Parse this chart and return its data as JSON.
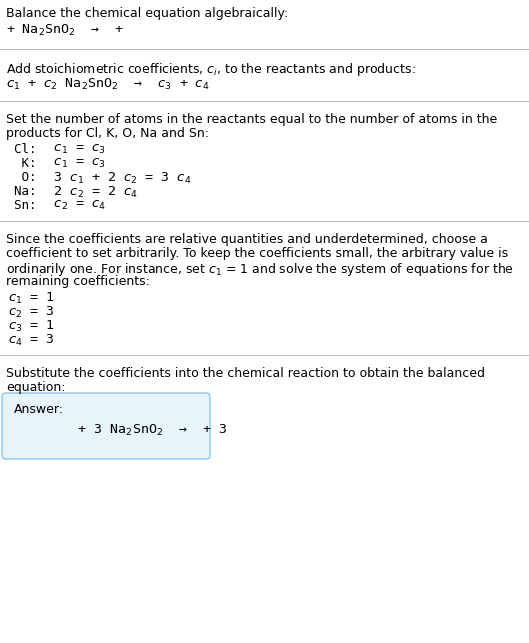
{
  "bg_color": "#ffffff",
  "text_color": "#000000",
  "section1_title": "Balance the chemical equation algebraically:",
  "section1_eq": "+ Na$_2$SnO$_2$  →  +",
  "section2_intro": "Add stoichiometric coefficients, $c_i$, to the reactants and products:",
  "section2_eq": "$c_1$ + $c_2$ Na$_2$SnO$_2$  →  $c_3$ + $c_4$",
  "section3_intro1": "Set the number of atoms in the reactants equal to the number of atoms in the",
  "section3_intro2": "products for Cl, K, O, Na and Sn:",
  "section3_rows": [
    [
      "Cl: ",
      " $c_1$ = $c_3$"
    ],
    [
      " K: ",
      " $c_1$ = $c_3$"
    ],
    [
      " O: ",
      " 3 $c_1$ + 2 $c_2$ = 3 $c_4$"
    ],
    [
      "Na: ",
      " 2 $c_2$ = 2 $c_4$"
    ],
    [
      "Sn: ",
      " $c_2$ = $c_4$"
    ]
  ],
  "section4_intro1": "Since the coefficients are relative quantities and underdetermined, choose a",
  "section4_intro2": "coefficient to set arbitrarily. To keep the coefficients small, the arbitrary value is",
  "section4_intro3": "ordinarily one. For instance, set $c_1$ = 1 and solve the system of equations for the",
  "section4_intro4": "remaining coefficients:",
  "section4_vals": [
    "$c_1$ = 1",
    "$c_2$ = 3",
    "$c_3$ = 1",
    "$c_4$ = 3"
  ],
  "section5_intro1": "Substitute the coefficients into the chemical reaction to obtain the balanced",
  "section5_intro2": "equation:",
  "answer_label": "Answer:",
  "answer_eq": "        + 3 Na$_2$SnO$_2$  →  + 3",
  "answer_box_facecolor": "#e8f4fb",
  "answer_box_edgecolor": "#88c8e8",
  "divider_color": "#bbbbbb",
  "fs": 9.0,
  "fs_eq": 9.5
}
